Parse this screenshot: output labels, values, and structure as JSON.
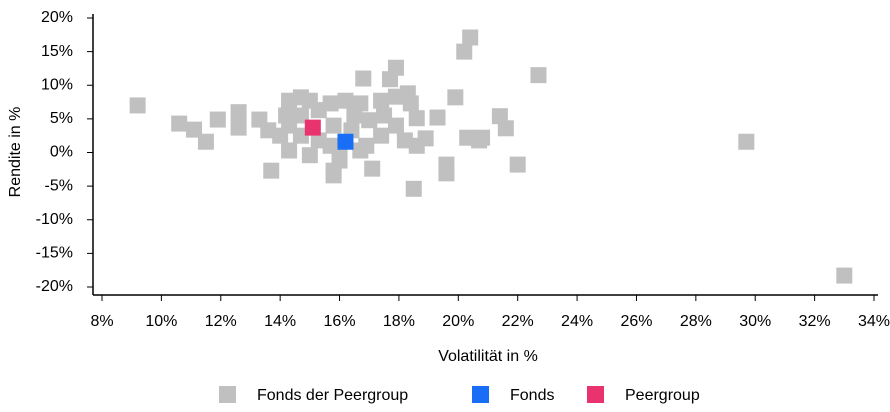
{
  "chart_data": {
    "type": "scatter",
    "xlabel": "Volatilität in %",
    "ylabel": "Rendite in %",
    "xlim": [
      8,
      34
    ],
    "ylim": [
      -20,
      20
    ],
    "xticks": [
      {
        "value": 8,
        "label": "8%"
      },
      {
        "value": 10,
        "label": "10%"
      },
      {
        "value": 12,
        "label": "12%"
      },
      {
        "value": 14,
        "label": "14%"
      },
      {
        "value": 16,
        "label": "16%"
      },
      {
        "value": 18,
        "label": "18%"
      },
      {
        "value": 20,
        "label": "20%"
      },
      {
        "value": 22,
        "label": "22%"
      },
      {
        "value": 24,
        "label": "24%"
      },
      {
        "value": 26,
        "label": "26%"
      },
      {
        "value": 28,
        "label": "28%"
      },
      {
        "value": 30,
        "label": "30%"
      },
      {
        "value": 32,
        "label": "32%"
      },
      {
        "value": 34,
        "label": "34%"
      }
    ],
    "yticks": [
      {
        "value": 20,
        "label": "20%"
      },
      {
        "value": 15,
        "label": "15%"
      },
      {
        "value": 10,
        "label": "10%"
      },
      {
        "value": 5,
        "label": "5%"
      },
      {
        "value": 0,
        "label": "0%"
      },
      {
        "value": -5,
        "label": "-5%"
      },
      {
        "value": -10,
        "label": "-10%"
      },
      {
        "value": -15,
        "label": "-15%"
      },
      {
        "value": -20,
        "label": "-20%"
      }
    ],
    "series": [
      {
        "name": "Fonds der Peergroup",
        "color": "#c0c0c0",
        "x": [
          9.2,
          10.6,
          11.1,
          11.5,
          11.9,
          12.6,
          12.6,
          13.3,
          13.7,
          13.6,
          16.8,
          17.9,
          17.7,
          17.1,
          15.8,
          15.8,
          18.5,
          19.3,
          18.9,
          19.9,
          20.2,
          20.4,
          20.3,
          20.7,
          20.8,
          19.6,
          19.6,
          21.4,
          21.6,
          22.0,
          22.7,
          29.7,
          33.0,
          14.3,
          14.7,
          15.0,
          15.7,
          16.2,
          16.7,
          17.4,
          17.9,
          18.3,
          18.4,
          18.6,
          14.3,
          14.7,
          14.3,
          15.0,
          15.3,
          15.8,
          16.4,
          16.9,
          17.4,
          17.9,
          18.2,
          18.6,
          14.0,
          14.2,
          16.0,
          16.5,
          17.0,
          17.5,
          15.3,
          14.7,
          16.0,
          16.7,
          15.7
        ],
        "y": [
          7.0,
          4.3,
          3.4,
          1.6,
          4.9,
          6.0,
          3.7,
          4.9,
          -2.7,
          3.3,
          11.0,
          12.6,
          10.9,
          -2.4,
          -2.7,
          -3.4,
          -5.4,
          5.2,
          2.1,
          8.2,
          15.0,
          17.1,
          2.2,
          1.8,
          2.2,
          -1.8,
          -3.1,
          5.4,
          3.6,
          -1.8,
          11.5,
          1.6,
          -18.3,
          7.7,
          8.2,
          7.7,
          7.3,
          7.7,
          7.3,
          7.7,
          8.3,
          8.8,
          7.3,
          5.1,
          4.0,
          2.5,
          0.3,
          -0.4,
          1.8,
          4.0,
          3.3,
          1.0,
          2.5,
          4.0,
          1.8,
          1.0,
          2.5,
          5.5,
          0.3,
          5.5,
          4.8,
          5.5,
          6.3,
          5.5,
          -1.2,
          0.3,
          1.0
        ]
      },
      {
        "name": "Fonds",
        "color": "#1a6ef5",
        "x": [
          16.2
        ],
        "y": [
          1.6
        ]
      },
      {
        "name": "Peergroup",
        "color": "#e8336f",
        "x": [
          15.1
        ],
        "y": [
          3.7
        ]
      }
    ]
  }
}
